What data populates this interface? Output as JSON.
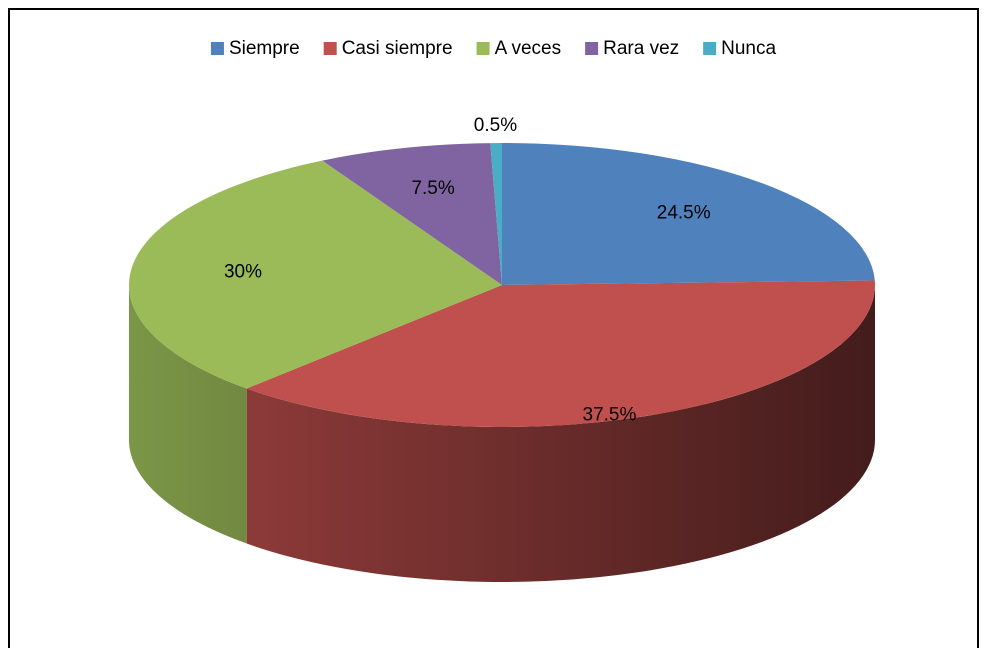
{
  "chart_data": {
    "type": "pie",
    "categories": [
      "Siempre",
      "Casi siempre",
      "A veces",
      "Rara vez",
      "Nunca"
    ],
    "values": [
      24.5,
      37.5,
      30,
      7.5,
      0.5
    ],
    "value_labels": [
      "24.5%",
      "37.5%",
      "30%",
      "7.5%",
      "0.5%"
    ],
    "colors": [
      "#4f81bd",
      "#c0504d",
      "#9bbb59",
      "#8064a2",
      "#4bacc6"
    ],
    "legend": "top"
  }
}
